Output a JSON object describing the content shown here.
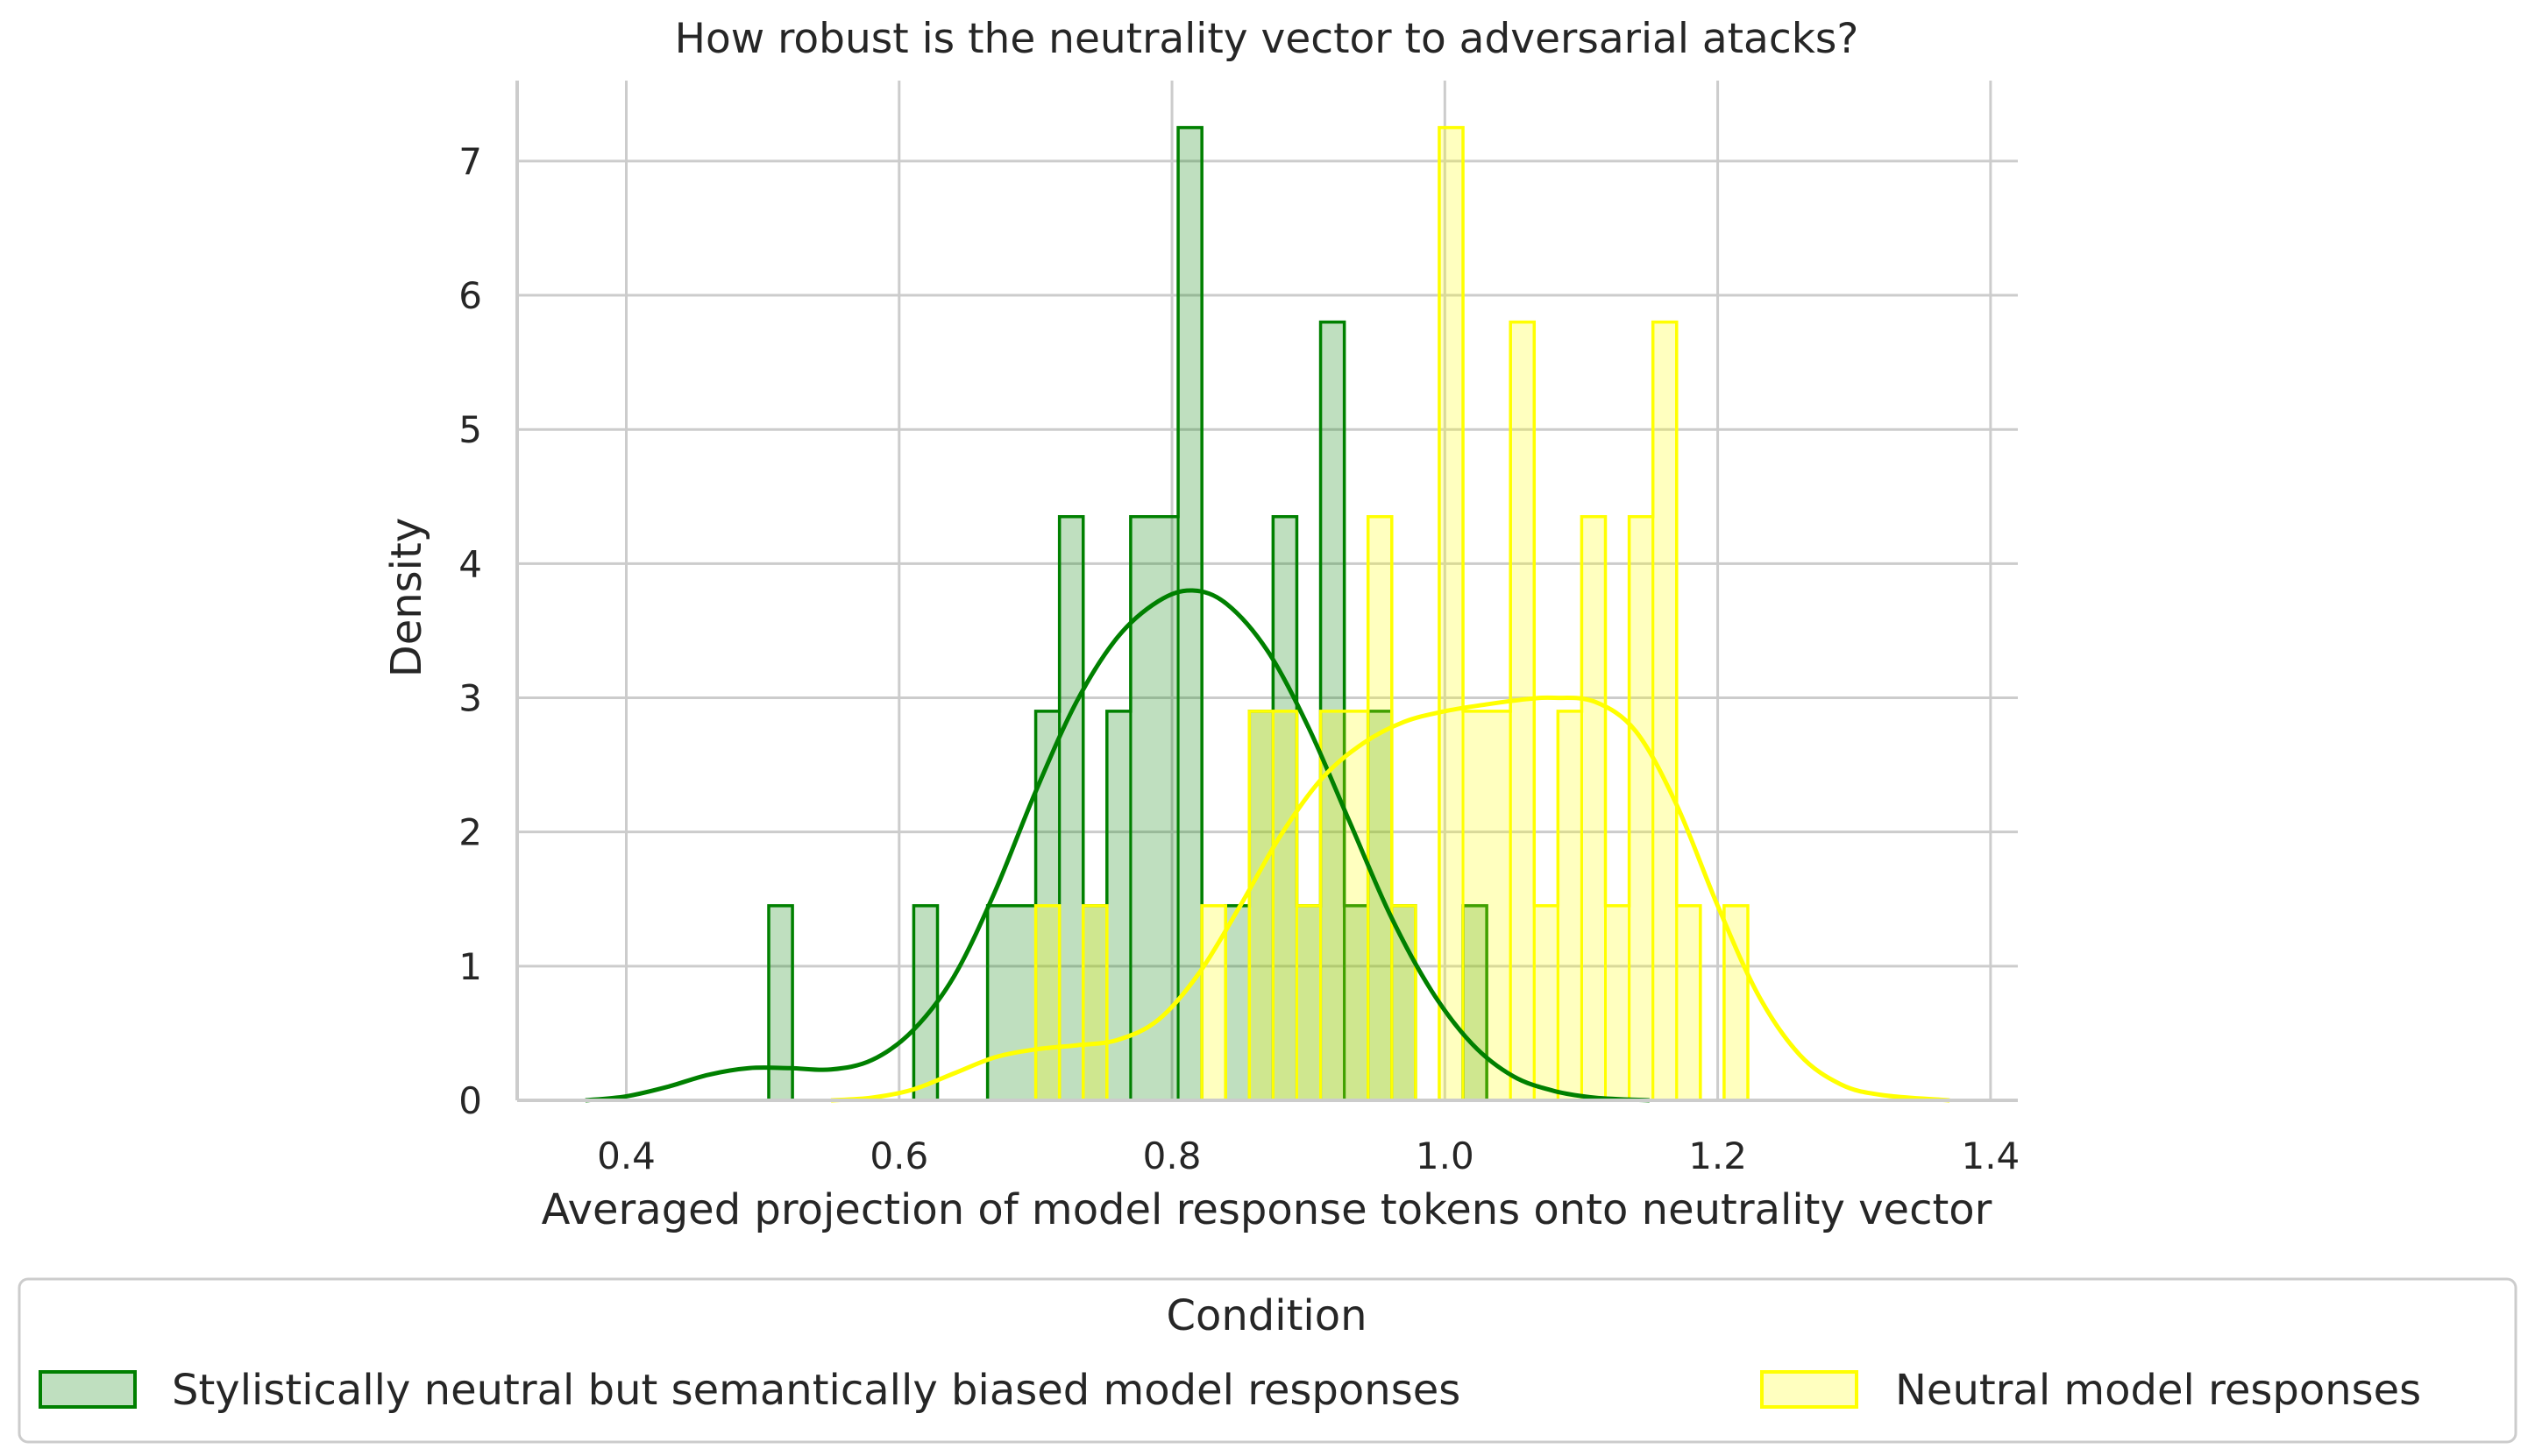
{
  "chart_data": {
    "type": "histogram",
    "title": "How robust is the neutrality vector to adversarial atacks?",
    "xlabel": "Averaged projection of model response tokens onto neutrality vector",
    "ylabel": "Density",
    "xlim": [
      0.32,
      1.42
    ],
    "ylim": [
      0,
      7.6
    ],
    "x_ticks": [
      0.4,
      0.6,
      0.8,
      1.0,
      1.2,
      1.4
    ],
    "x_tick_labels": [
      "0.4",
      "0.6",
      "0.8",
      "1.0",
      "1.2",
      "1.4"
    ],
    "y_ticks": [
      0,
      1,
      2,
      3,
      4,
      5,
      6,
      7
    ],
    "y_tick_labels": [
      "0",
      "1",
      "2",
      "3",
      "4",
      "5",
      "6",
      "7"
    ],
    "grid": true,
    "legend": {
      "title": "Condition",
      "placement": "bottom"
    },
    "series": [
      {
        "name": "Stylistically neutral but semantically biased model responses",
        "color": "#008000",
        "bin_width": 0.01737,
        "bins": [
          {
            "x0": 0.5044,
            "x1": 0.5218,
            "density": 1.45
          },
          {
            "x0": 0.6107,
            "x1": 0.6281,
            "density": 1.45
          },
          {
            "x0": 0.6648,
            "x1": 0.7001,
            "density": 1.45
          },
          {
            "x0": 0.7001,
            "x1": 0.7175,
            "density": 2.9
          },
          {
            "x0": 0.7175,
            "x1": 0.7349,
            "density": 4.35
          },
          {
            "x0": 0.7349,
            "x1": 0.7523,
            "density": 1.45
          },
          {
            "x0": 0.7523,
            "x1": 0.7697,
            "density": 2.9
          },
          {
            "x0": 0.7697,
            "x1": 0.8045,
            "density": 4.35
          },
          {
            "x0": 0.8045,
            "x1": 0.8219,
            "density": 7.25
          },
          {
            "x0": 0.8219,
            "x1": 0.8393,
            "density": 0
          },
          {
            "x0": 0.8393,
            "x1": 0.8567,
            "density": 1.45
          },
          {
            "x0": 0.8567,
            "x1": 0.8741,
            "density": 2.9
          },
          {
            "x0": 0.8741,
            "x1": 0.8915,
            "density": 4.35
          },
          {
            "x0": 0.8915,
            "x1": 0.9089,
            "density": 1.45
          },
          {
            "x0": 0.9089,
            "x1": 0.9263,
            "density": 5.8
          },
          {
            "x0": 0.9263,
            "x1": 0.9437,
            "density": 1.45
          },
          {
            "x0": 0.9437,
            "x1": 0.9611,
            "density": 2.9
          },
          {
            "x0": 0.9611,
            "x1": 0.9785,
            "density": 1.45
          },
          {
            "x0": 0.9785,
            "x1": 0.9959,
            "density": 0
          },
          {
            "x0": 1.0133,
            "x1": 1.0307,
            "density": 1.45
          }
        ],
        "kde": [
          [
            0.37,
            0.0
          ],
          [
            0.4,
            0.03
          ],
          [
            0.43,
            0.1
          ],
          [
            0.46,
            0.19
          ],
          [
            0.49,
            0.24
          ],
          [
            0.52,
            0.24
          ],
          [
            0.55,
            0.23
          ],
          [
            0.58,
            0.3
          ],
          [
            0.61,
            0.52
          ],
          [
            0.64,
            0.92
          ],
          [
            0.67,
            1.55
          ],
          [
            0.7,
            2.3
          ],
          [
            0.73,
            2.97
          ],
          [
            0.76,
            3.45
          ],
          [
            0.79,
            3.72
          ],
          [
            0.815,
            3.8
          ],
          [
            0.84,
            3.7
          ],
          [
            0.87,
            3.35
          ],
          [
            0.9,
            2.78
          ],
          [
            0.93,
            2.08
          ],
          [
            0.96,
            1.38
          ],
          [
            0.99,
            0.82
          ],
          [
            1.02,
            0.42
          ],
          [
            1.05,
            0.18
          ],
          [
            1.08,
            0.07
          ],
          [
            1.11,
            0.02
          ],
          [
            1.15,
            0.0
          ]
        ]
      },
      {
        "name": "Neutral model responses",
        "color": "#ffff00",
        "bin_width": 0.01737,
        "bins": [
          {
            "x0": 0.7001,
            "x1": 0.7175,
            "density": 1.45
          },
          {
            "x0": 0.7349,
            "x1": 0.7523,
            "density": 1.45
          },
          {
            "x0": 0.8219,
            "x1": 0.8393,
            "density": 1.45
          },
          {
            "x0": 0.8393,
            "x1": 0.8567,
            "density": 0
          },
          {
            "x0": 0.8567,
            "x1": 0.8741,
            "density": 2.9
          },
          {
            "x0": 0.8741,
            "x1": 0.8915,
            "density": 2.9
          },
          {
            "x0": 0.8915,
            "x1": 0.9089,
            "density": 1.45
          },
          {
            "x0": 0.9089,
            "x1": 0.9437,
            "density": 2.9
          },
          {
            "x0": 0.9437,
            "x1": 0.9611,
            "density": 4.35
          },
          {
            "x0": 0.9611,
            "x1": 0.9785,
            "density": 1.45
          },
          {
            "x0": 0.9959,
            "x1": 1.0133,
            "density": 7.25
          },
          {
            "x0": 1.0133,
            "x1": 1.0481,
            "density": 2.9
          },
          {
            "x0": 1.0481,
            "x1": 1.0655,
            "density": 5.8
          },
          {
            "x0": 1.0655,
            "x1": 1.0829,
            "density": 1.45
          },
          {
            "x0": 1.0829,
            "x1": 1.1003,
            "density": 2.9
          },
          {
            "x0": 1.1003,
            "x1": 1.1177,
            "density": 4.35
          },
          {
            "x0": 1.1177,
            "x1": 1.1351,
            "density": 1.45
          },
          {
            "x0": 1.1351,
            "x1": 1.1525,
            "density": 4.35
          },
          {
            "x0": 1.1525,
            "x1": 1.1699,
            "density": 5.8
          },
          {
            "x0": 1.1699,
            "x1": 1.1873,
            "density": 1.45
          },
          {
            "x0": 1.1873,
            "x1": 1.2047,
            "density": 0
          },
          {
            "x0": 1.2047,
            "x1": 1.2221,
            "density": 1.45
          }
        ],
        "kde": [
          [
            0.55,
            0.0
          ],
          [
            0.58,
            0.02
          ],
          [
            0.61,
            0.08
          ],
          [
            0.64,
            0.2
          ],
          [
            0.67,
            0.32
          ],
          [
            0.7,
            0.38
          ],
          [
            0.73,
            0.41
          ],
          [
            0.76,
            0.45
          ],
          [
            0.79,
            0.6
          ],
          [
            0.82,
            0.95
          ],
          [
            0.85,
            1.45
          ],
          [
            0.88,
            1.98
          ],
          [
            0.91,
            2.4
          ],
          [
            0.94,
            2.66
          ],
          [
            0.97,
            2.82
          ],
          [
            1.0,
            2.9
          ],
          [
            1.03,
            2.95
          ],
          [
            1.06,
            2.99
          ],
          [
            1.08,
            3.0
          ],
          [
            1.11,
            2.97
          ],
          [
            1.14,
            2.75
          ],
          [
            1.17,
            2.2
          ],
          [
            1.2,
            1.45
          ],
          [
            1.23,
            0.78
          ],
          [
            1.26,
            0.34
          ],
          [
            1.29,
            0.12
          ],
          [
            1.32,
            0.04
          ],
          [
            1.37,
            0.0
          ]
        ]
      }
    ]
  }
}
